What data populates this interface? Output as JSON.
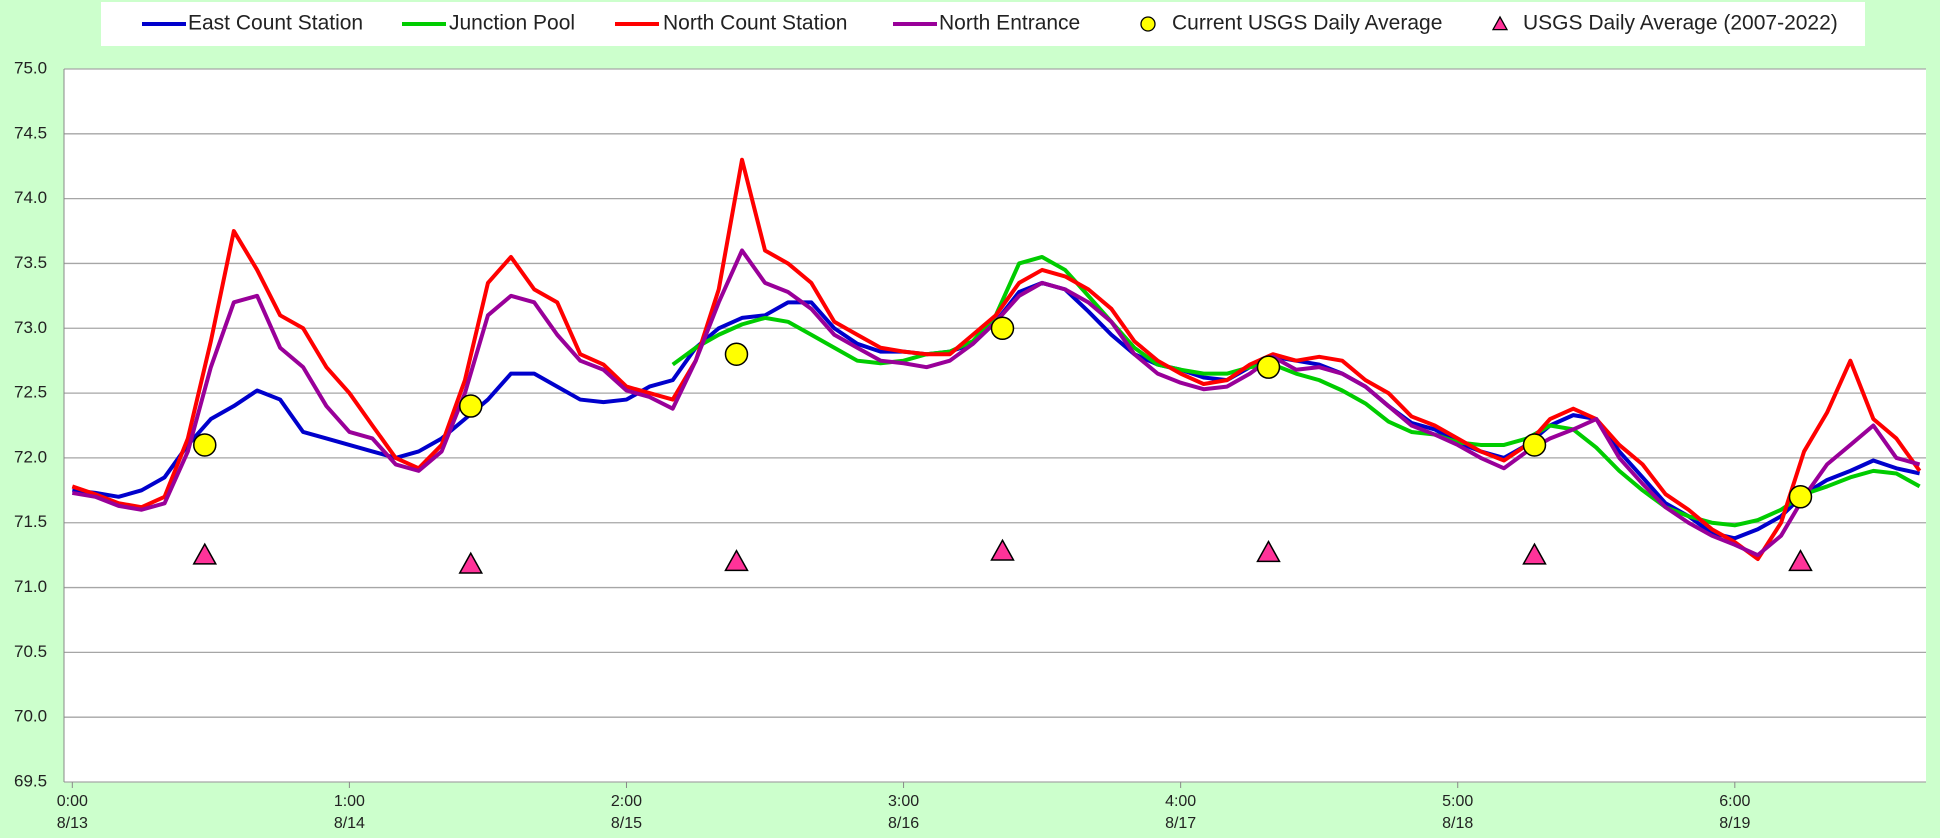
{
  "chart_data": {
    "type": "line",
    "grid": true,
    "legend": "top",
    "xlim": [
      -0.03,
      6.69
    ],
    "ylim": [
      69.5,
      75.0
    ],
    "xticks": [
      {
        "value": 0,
        "label": "0:00 8/13"
      },
      {
        "value": 1,
        "label": "1:00 8/14"
      },
      {
        "value": 2,
        "label": "2:00 8/15"
      },
      {
        "value": 3,
        "label": "3:00 8/16"
      },
      {
        "value": 4,
        "label": "4:00 8/17"
      },
      {
        "value": 5,
        "label": "5:00 8/18"
      },
      {
        "value": 6,
        "label": "6:00 8/19"
      }
    ],
    "yticks": [
      {
        "value": 69.5,
        "label": "69.5"
      },
      {
        "value": 70,
        "label": "70.0"
      },
      {
        "value": 70.5,
        "label": "70.5"
      },
      {
        "value": 71,
        "label": "71.0"
      },
      {
        "value": 71.5,
        "label": "71.5"
      },
      {
        "value": 72,
        "label": "72.0"
      },
      {
        "value": 72.5,
        "label": "72.5"
      },
      {
        "value": 73,
        "label": "73.0"
      },
      {
        "value": 73.5,
        "label": "73.5"
      },
      {
        "value": 74,
        "label": "74.0"
      },
      {
        "value": 74.5,
        "label": "74.5"
      },
      {
        "value": 75,
        "label": "75.0"
      }
    ],
    "x": [
      0,
      0.083,
      0.167,
      0.25,
      0.333,
      0.417,
      0.5,
      0.583,
      0.667,
      0.75,
      0.833,
      0.917,
      1,
      1.083,
      1.167,
      1.25,
      1.333,
      1.417,
      1.5,
      1.583,
      1.667,
      1.75,
      1.833,
      1.917,
      2,
      2.083,
      2.167,
      2.25,
      2.333,
      2.417,
      2.5,
      2.583,
      2.667,
      2.75,
      2.833,
      2.917,
      3,
      3.083,
      3.167,
      3.25,
      3.333,
      3.417,
      3.5,
      3.583,
      3.667,
      3.75,
      3.833,
      3.917,
      4,
      4.083,
      4.167,
      4.25,
      4.333,
      4.417,
      4.5,
      4.583,
      4.667,
      4.75,
      4.833,
      4.917,
      5,
      5.083,
      5.167,
      5.25,
      5.333,
      5.417,
      5.5,
      5.583,
      5.667,
      5.75,
      5.833,
      5.917,
      6,
      6.083,
      6.167,
      6.25,
      6.333,
      6.417,
      6.5,
      6.583,
      6.667
    ],
    "series": [
      {
        "name": "East Count Station",
        "color": "#0000cc",
        "type": "line",
        "values": [
          71.75,
          71.73,
          71.7,
          71.75,
          71.85,
          72.1,
          72.3,
          72.4,
          72.52,
          72.45,
          72.2,
          72.15,
          72.1,
          72.05,
          72.0,
          72.05,
          72.15,
          72.3,
          72.45,
          72.65,
          72.65,
          72.55,
          72.45,
          72.43,
          72.45,
          72.55,
          72.6,
          72.85,
          73.0,
          73.08,
          73.1,
          73.2,
          73.2,
          73.0,
          72.88,
          72.82,
          72.82,
          72.8,
          72.82,
          72.88,
          73.05,
          73.28,
          73.35,
          73.3,
          73.13,
          72.95,
          72.8,
          72.72,
          72.68,
          72.62,
          72.6,
          72.7,
          72.78,
          72.75,
          72.72,
          72.65,
          72.55,
          72.4,
          72.27,
          72.22,
          72.12,
          72.05,
          72.0,
          72.1,
          72.25,
          72.33,
          72.3,
          72.05,
          71.85,
          71.65,
          71.55,
          71.42,
          71.38,
          71.45,
          71.55,
          71.72,
          71.83,
          71.9,
          71.98,
          71.92,
          71.88
        ]
      },
      {
        "name": "Junction Pool",
        "color": "#00cc00",
        "type": "line",
        "values": [
          null,
          null,
          null,
          null,
          null,
          null,
          null,
          null,
          null,
          null,
          null,
          null,
          null,
          null,
          null,
          null,
          null,
          null,
          null,
          null,
          null,
          null,
          null,
          null,
          null,
          null,
          72.72,
          72.85,
          72.95,
          73.03,
          73.08,
          73.05,
          72.95,
          72.85,
          72.75,
          72.73,
          72.75,
          72.8,
          72.82,
          72.9,
          73.1,
          73.5,
          73.55,
          73.45,
          73.25,
          73.05,
          72.85,
          72.72,
          72.68,
          72.65,
          72.65,
          72.7,
          72.72,
          72.65,
          72.6,
          72.52,
          72.42,
          72.28,
          72.2,
          72.18,
          72.12,
          72.1,
          72.1,
          72.15,
          72.25,
          72.22,
          72.08,
          71.9,
          71.75,
          71.62,
          71.55,
          71.5,
          71.48,
          71.52,
          71.6,
          71.72,
          71.78,
          71.85,
          71.9,
          71.88,
          71.78
        ]
      },
      {
        "name": "North Count Station",
        "color": "#ff0000",
        "type": "line",
        "values": [
          71.78,
          71.72,
          71.65,
          71.62,
          71.7,
          72.15,
          72.9,
          73.75,
          73.45,
          73.1,
          73.0,
          72.7,
          72.5,
          72.25,
          72.0,
          71.92,
          72.1,
          72.6,
          73.35,
          73.55,
          73.3,
          73.2,
          72.8,
          72.72,
          72.55,
          72.5,
          72.45,
          72.75,
          73.3,
          74.3,
          73.6,
          73.5,
          73.35,
          73.05,
          72.95,
          72.85,
          72.82,
          72.8,
          72.8,
          72.95,
          73.1,
          73.35,
          73.45,
          73.4,
          73.3,
          73.15,
          72.9,
          72.75,
          72.65,
          72.57,
          72.6,
          72.72,
          72.8,
          72.75,
          72.78,
          72.75,
          72.6,
          72.5,
          72.32,
          72.25,
          72.15,
          72.05,
          71.98,
          72.1,
          72.3,
          72.38,
          72.3,
          72.1,
          71.95,
          71.72,
          71.6,
          71.45,
          71.35,
          71.22,
          71.5,
          72.05,
          72.35,
          72.75,
          72.3,
          72.15,
          71.9
        ]
      },
      {
        "name": "North Entrance",
        "color": "#990099",
        "type": "line",
        "values": [
          71.73,
          71.7,
          71.63,
          71.6,
          71.65,
          72.05,
          72.7,
          73.2,
          73.25,
          72.85,
          72.7,
          72.4,
          72.2,
          72.15,
          71.95,
          71.9,
          72.05,
          72.5,
          73.1,
          73.25,
          73.2,
          72.95,
          72.75,
          72.68,
          72.52,
          72.47,
          72.38,
          72.75,
          73.2,
          73.6,
          73.35,
          73.28,
          73.15,
          72.95,
          72.85,
          72.75,
          72.73,
          72.7,
          72.75,
          72.88,
          73.05,
          73.25,
          73.35,
          73.3,
          73.2,
          73.05,
          72.8,
          72.65,
          72.58,
          72.53,
          72.55,
          72.65,
          72.78,
          72.68,
          72.7,
          72.65,
          72.55,
          72.4,
          72.25,
          72.18,
          72.1,
          72.0,
          71.92,
          72.05,
          72.15,
          72.22,
          72.3,
          72.0,
          71.8,
          71.62,
          71.5,
          71.4,
          71.33,
          71.25,
          71.4,
          71.7,
          71.95,
          72.1,
          72.25,
          72.0,
          71.95
        ]
      },
      {
        "name": "Current USGS Daily Average",
        "color": "#ffff00",
        "type": "scatter",
        "marker": "circle",
        "x": [
          0.478,
          1.438,
          2.397,
          3.357,
          4.317,
          5.277,
          6.237
        ],
        "values": [
          72.1,
          72.4,
          72.8,
          73.0,
          72.7,
          72.1,
          71.7
        ]
      },
      {
        "name": "USGS Daily Average (2007-2022)",
        "color": "#ff3399",
        "type": "scatter",
        "marker": "triangle",
        "x": [
          0.478,
          1.438,
          2.397,
          3.357,
          4.317,
          5.277,
          6.237
        ],
        "values": [
          71.25,
          71.18,
          71.2,
          71.28,
          71.27,
          71.25,
          71.2
        ]
      }
    ]
  }
}
